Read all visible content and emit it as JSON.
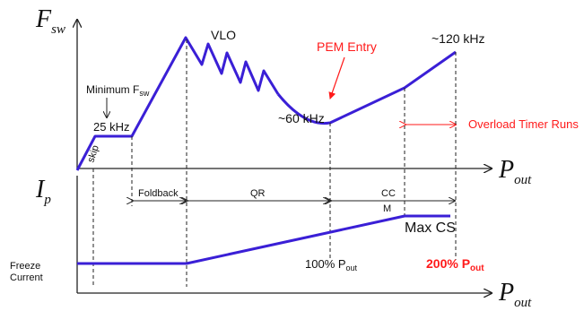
{
  "colors": {
    "curve": "#3a1fd6",
    "axis": "#222222",
    "red": "#ff1a1a",
    "text": "#111111"
  },
  "top": {
    "y_label_main": "F",
    "y_label_sub": "sw",
    "x_label_main": "P",
    "x_label_sub": "out",
    "vlo": "VLO",
    "pem_entry": "PEM Entry",
    "freq_120": "~120 kHz",
    "freq_60": "~60 kHz",
    "minimum_main": "Minimum F",
    "minimum_sub": "sw",
    "freq_25": "25 kHz",
    "skip": "skip",
    "overload": "Overload Timer Runs"
  },
  "regions": {
    "foldback": "Foldback",
    "qr": "QR",
    "ccm_1": "CC",
    "ccm_2": "M"
  },
  "bottom": {
    "y_label_main": "I",
    "y_label_sub": "p",
    "x_label_main": "P",
    "x_label_sub": "out",
    "max_cs": "Max CS",
    "freeze_1": "Freeze",
    "freeze_2": "Current",
    "p100_main": "100% P",
    "p100_sub": "out",
    "p200_main": "200% P",
    "p200_sub": "out"
  }
}
